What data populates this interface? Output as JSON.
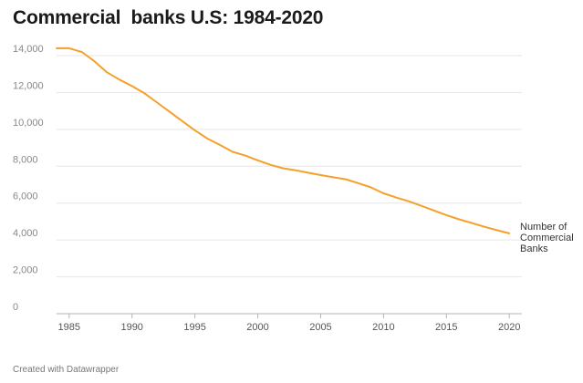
{
  "chart_data": {
    "type": "line",
    "title": "Commercial  banks U.S: 1984-2020",
    "footer": "Created with Datawrapper",
    "xlabel": "",
    "ylabel": "",
    "xlim": [
      1984,
      2021
    ],
    "ylim": [
      0,
      14000
    ],
    "y_ticks": [
      0,
      2000,
      4000,
      6000,
      8000,
      10000,
      12000,
      14000
    ],
    "y_tick_labels": [
      "0",
      "2,000",
      "4,000",
      "6,000",
      "8,000",
      "10,000",
      "12,000",
      "14,000"
    ],
    "x_ticks": [
      1985,
      1990,
      1995,
      2000,
      2005,
      2010,
      2015,
      2020
    ],
    "x_tick_labels": [
      "1985",
      "1990",
      "1995",
      "2000",
      "2005",
      "2010",
      "2015",
      "2020"
    ],
    "grid": true,
    "color": "#f5a02a",
    "series": [
      {
        "name": "Number of Commercial Banks",
        "label_lines": [
          "Number of",
          "Commercial",
          "Banks"
        ],
        "x": [
          1984,
          1985,
          1986,
          1987,
          1988,
          1989,
          1990,
          1991,
          1992,
          1993,
          1994,
          1995,
          1996,
          1997,
          1998,
          1999,
          2000,
          2001,
          2002,
          2003,
          2004,
          2005,
          2006,
          2007,
          2008,
          2009,
          2010,
          2011,
          2012,
          2013,
          2014,
          2015,
          2016,
          2017,
          2018,
          2019,
          2020
        ],
        "values": [
          14400,
          14400,
          14200,
          13700,
          13100,
          12700,
          12350,
          11950,
          11450,
          10950,
          10450,
          9950,
          9500,
          9150,
          8780,
          8580,
          8320,
          8080,
          7890,
          7780,
          7650,
          7520,
          7400,
          7290,
          7080,
          6850,
          6530,
          6300,
          6100,
          5850,
          5600,
          5350,
          5120,
          4920,
          4720,
          4530,
          4360
        ]
      }
    ]
  }
}
